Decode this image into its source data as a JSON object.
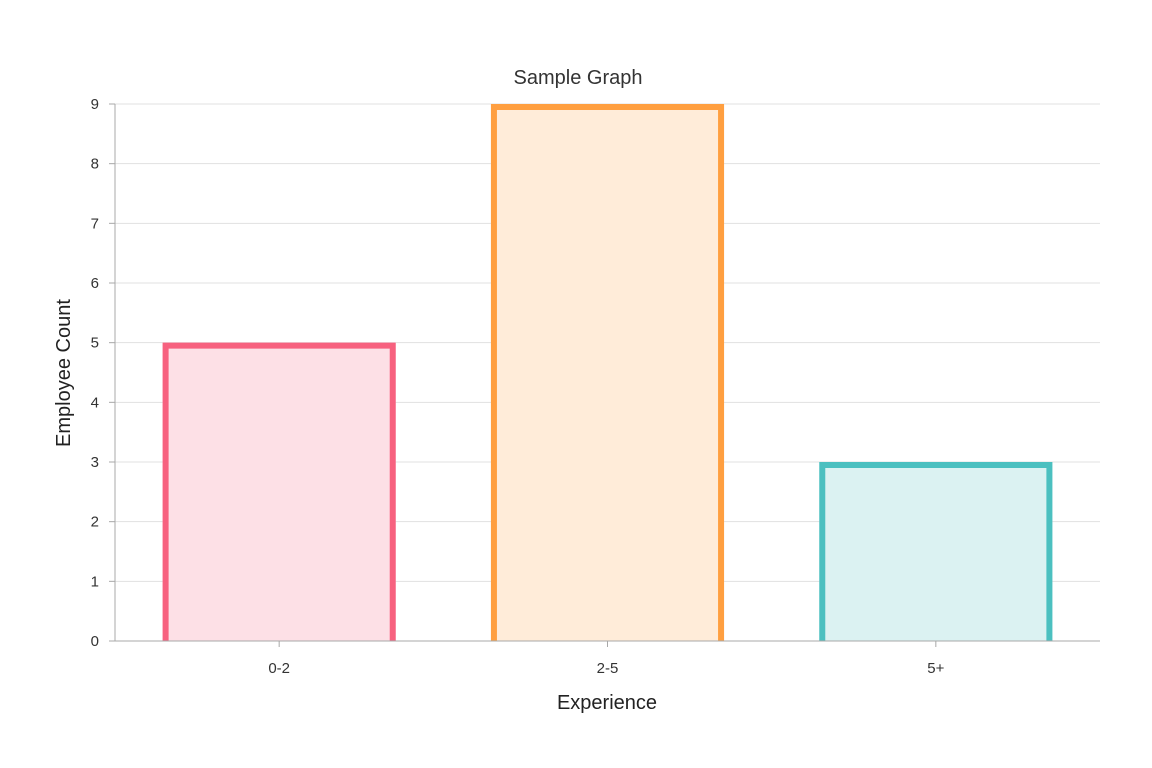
{
  "chart_data": {
    "type": "bar",
    "title": "Sample Graph",
    "xlabel": "Experience",
    "ylabel": "Employee Count",
    "categories": [
      "0-2",
      "2-5",
      "5+"
    ],
    "values": [
      5,
      9,
      3
    ],
    "ylim": [
      0,
      9
    ],
    "yticks": [
      0,
      1,
      2,
      3,
      4,
      5,
      6,
      7,
      8,
      9
    ],
    "grid": true,
    "bar_border_colors": [
      "#f7617f",
      "#ff9f40",
      "#4bc0c0"
    ],
    "bar_fill_colors": [
      "#fde0e6",
      "#ffecd9",
      "#dbf2f2"
    ],
    "grid_color": "#e1e1e1",
    "axis_color": "#a8a8a8"
  }
}
